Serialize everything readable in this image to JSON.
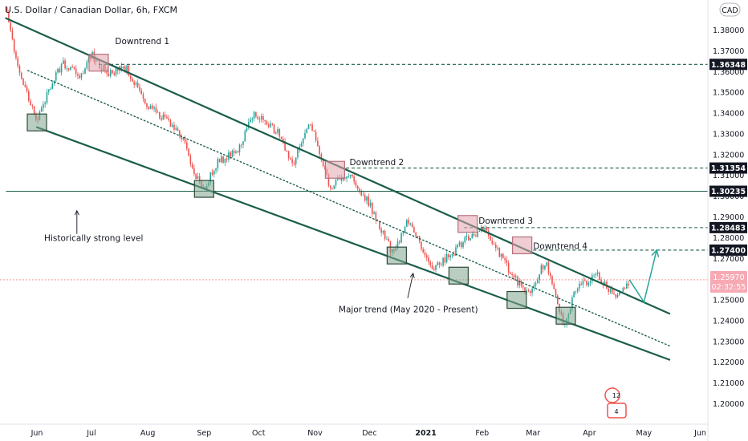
{
  "title": "U.S. Dollar / Canadian Dollar, 6h, FXCM",
  "currency_badge": "CAD",
  "price_badge": {
    "price": "1.25970",
    "countdown": "02:32:55"
  },
  "colors": {
    "background": "#ffffff",
    "candle_up": "#26a69a",
    "candle_down": "#ef5350",
    "channel_line": "#1b5e4b",
    "level_line": "#1b5e4b",
    "level_label_bg": "#131722",
    "last_price_bg": "#f7a9b4",
    "arrow": "#26a69a",
    "box_green": "#7fa58e",
    "box_red": "#e2a4ad"
  },
  "legend_marker": {
    "count_top": "12",
    "count_bottom": "4"
  },
  "chart_data": {
    "type": "candlestick",
    "title": "U.S. Dollar / Canadian Dollar, 6h, FXCM",
    "y_ticks": [
      "1.38000",
      "1.37000",
      "1.36000",
      "1.35000",
      "1.34000",
      "1.33000",
      "1.32000",
      "1.31000",
      "1.30000",
      "1.29000",
      "1.28000",
      "1.27000",
      "1.26000",
      "1.25000",
      "1.24000",
      "1.23000",
      "1.22000",
      "1.21000",
      "1.20000"
    ],
    "x_ticks": [
      "Jun",
      "Jul",
      "Aug",
      "Sep",
      "Oct",
      "Nov",
      "Dec",
      "2021",
      "Feb",
      "Mar",
      "Apr",
      "May",
      "Jun"
    ],
    "ylim": [
      1.193,
      1.391
    ],
    "price_path": [
      [
        "2020-05-15",
        1.391
      ],
      [
        "2020-05-22",
        1.36
      ],
      [
        "2020-06-01",
        1.336
      ],
      [
        "2020-06-08",
        1.352
      ],
      [
        "2020-06-15",
        1.364
      ],
      [
        "2020-06-25",
        1.358
      ],
      [
        "2020-07-01",
        1.368
      ],
      [
        "2020-07-10",
        1.359
      ],
      [
        "2020-07-20",
        1.362
      ],
      [
        "2020-07-31",
        1.344
      ],
      [
        "2020-08-10",
        1.337
      ],
      [
        "2020-08-20",
        1.328
      ],
      [
        "2020-08-31",
        1.302
      ],
      [
        "2020-09-08",
        1.316
      ],
      [
        "2020-09-20",
        1.322
      ],
      [
        "2020-09-28",
        1.34
      ],
      [
        "2020-10-05",
        1.336
      ],
      [
        "2020-10-12",
        1.33
      ],
      [
        "2020-10-20",
        1.316
      ],
      [
        "2020-10-29",
        1.337
      ],
      [
        "2020-11-09",
        1.304
      ],
      [
        "2020-11-20",
        1.311
      ],
      [
        "2020-12-01",
        1.296
      ],
      [
        "2020-12-14",
        1.272
      ],
      [
        "2020-12-22",
        1.288
      ],
      [
        "2021-01-05",
        1.266
      ],
      [
        "2021-01-14",
        1.271
      ],
      [
        "2021-01-25",
        1.281
      ],
      [
        "2021-02-02",
        1.284
      ],
      [
        "2021-02-16",
        1.264
      ],
      [
        "2021-02-26",
        1.252
      ],
      [
        "2021-03-08",
        1.269
      ],
      [
        "2021-03-18",
        1.238
      ],
      [
        "2021-03-25",
        1.256
      ],
      [
        "2021-04-05",
        1.262
      ],
      [
        "2021-04-15",
        1.251
      ],
      [
        "2021-04-23",
        1.2597
      ]
    ],
    "projection": [
      [
        "2021-04-23",
        1.2597
      ],
      [
        "2021-05-01",
        1.249
      ],
      [
        "2021-05-08",
        1.274
      ]
    ],
    "levels": [
      {
        "label": "1.36348",
        "value": 1.36348,
        "from": "2020-07-05",
        "style": "dashed"
      },
      {
        "label": "1.31354",
        "value": 1.31354,
        "from": "2020-11-15",
        "style": "dashed"
      },
      {
        "label": "1.30235",
        "value": 1.30235,
        "from": "2020-05-15",
        "style": "solid"
      },
      {
        "label": "1.28483",
        "value": 1.28483,
        "from": "2021-01-22",
        "style": "dashed"
      },
      {
        "label": "1.27400",
        "value": 1.274,
        "from": "2021-03-01",
        "style": "dashed"
      }
    ],
    "last_price": {
      "label": "1.25970",
      "value": 1.2597
    },
    "channel": {
      "upper": [
        [
          "2020-05-15",
          1.3857
        ],
        [
          "2021-05-15",
          1.2434
        ]
      ],
      "lower": [
        [
          "2020-06-01",
          1.3332
        ],
        [
          "2021-05-15",
          1.2212
        ]
      ],
      "middle": [
        [
          "2020-05-27",
          1.3605
        ],
        [
          "2021-05-15",
          1.2279
        ]
      ]
    },
    "boxes": [
      {
        "date": "2020-06-01",
        "value": 1.3355,
        "color": "green"
      },
      {
        "date": "2020-07-05",
        "value": 1.3643,
        "color": "red"
      },
      {
        "date": "2020-09-01",
        "value": 1.3035,
        "color": "green"
      },
      {
        "date": "2020-11-12",
        "value": 1.3127,
        "color": "red"
      },
      {
        "date": "2020-12-16",
        "value": 1.2714,
        "color": "green"
      },
      {
        "date": "2021-01-24",
        "value": 1.2866,
        "color": "red"
      },
      {
        "date": "2021-01-19",
        "value": 1.2617,
        "color": "green"
      },
      {
        "date": "2021-02-23",
        "value": 1.2763,
        "color": "red"
      },
      {
        "date": "2021-02-20",
        "value": 1.25,
        "color": "green"
      },
      {
        "date": "2021-03-19",
        "value": 1.2424,
        "color": "green"
      }
    ],
    "annotations": [
      {
        "text": "Downtrend 1",
        "date": "2020-07-14",
        "value": 1.3733
      },
      {
        "text": "Downtrend 2",
        "date": "2020-11-20",
        "value": 1.315
      },
      {
        "text": "Downtrend 3",
        "date": "2021-01-30",
        "value": 1.2868
      },
      {
        "text": "Downtrend 4",
        "date": "2021-03-01",
        "value": 1.2745
      },
      {
        "text": "Historically strong level",
        "date": "2020-06-05",
        "value": 1.2785
      },
      {
        "text": "Major trend (May 2020 - Present)",
        "date": "2020-11-14",
        "value": 1.2441
      }
    ],
    "arrows": [
      {
        "from": [
          "2020-06-23",
          1.2818
        ],
        "to": [
          "2020-06-23",
          1.293
        ]
      },
      {
        "from": [
          "2020-12-22",
          1.2509
        ],
        "to": [
          "2020-12-25",
          1.2628
        ]
      }
    ]
  }
}
